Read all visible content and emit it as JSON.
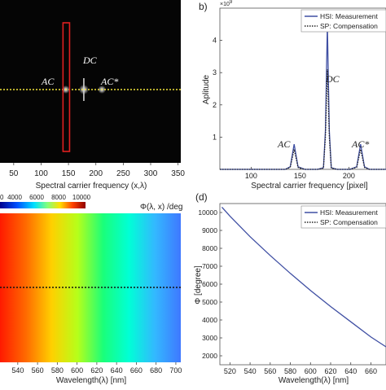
{
  "chart_data": [
    {
      "type": "heatmap",
      "panel": "a",
      "xlabel": "Spectral carrier frequency (x,λ)",
      "xticks": [
        "50",
        "100",
        "150",
        "200",
        "250",
        "300",
        "350"
      ],
      "xlim": [
        25,
        355
      ],
      "peak_labels": [
        "AC",
        "DC",
        "AC*"
      ],
      "peaks_x": [
        145,
        178,
        211
      ],
      "highlight_band_x": [
        140,
        152
      ],
      "line_color": "#f2e33a"
    },
    {
      "type": "line",
      "panel": "b",
      "panel_label": "b)",
      "xlabel": "Spectral carrier frequency [pixel]",
      "ylabel": "Aplitude",
      "y_multiplier": "×10",
      "y_exponent": "9",
      "xticks": [
        100,
        150,
        200
      ],
      "yticks": [
        1,
        2,
        3,
        4
      ],
      "xlim": [
        68,
        238
      ],
      "ylim": [
        0,
        5
      ],
      "legend": [
        "HSI: Measurement",
        "SP: Compensation"
      ],
      "legend_placement": "top-right",
      "peak_labels": [
        "AC",
        "DC",
        "AC*"
      ],
      "series": [
        {
          "name": "HSI: Measurement",
          "x": [
            68,
            100,
            135,
            140,
            144,
            148,
            155,
            168,
            174,
            176,
            178,
            180,
            182,
            188,
            201,
            208,
            212,
            216,
            221,
            238
          ],
          "y": [
            0.0,
            0.0,
            0.0,
            0.08,
            0.78,
            0.08,
            0.0,
            0.0,
            0.05,
            1.2,
            4.5,
            1.2,
            0.05,
            0.0,
            0.0,
            0.08,
            0.78,
            0.08,
            0.0,
            0.0
          ]
        },
        {
          "name": "SP: Compensation",
          "x": [
            68,
            100,
            135,
            140,
            144,
            148,
            155,
            168,
            174,
            176,
            178,
            180,
            182,
            188,
            201,
            208,
            212,
            216,
            221,
            238
          ],
          "y": [
            0.0,
            0.0,
            0.0,
            0.06,
            0.62,
            0.06,
            0.0,
            0.0,
            0.04,
            1.0,
            3.1,
            1.0,
            0.04,
            0.0,
            0.0,
            0.06,
            0.62,
            0.06,
            0.0,
            0.0
          ]
        }
      ],
      "colors": {
        "measurement": "#3f4fa3",
        "compensation": "#222222"
      }
    },
    {
      "type": "heatmap",
      "panel": "c",
      "title": "Φ(λ, x) /deg",
      "colorbar_ticks": [
        "0",
        "4000",
        "6000",
        "8000",
        "10000"
      ],
      "xlabel": "Wavelength(λ) [nm]",
      "xticks": [
        540,
        560,
        580,
        600,
        620,
        640,
        660,
        680,
        700
      ],
      "xlim": [
        522,
        705
      ],
      "spectrum_stops": [
        "#ff1a00",
        "#ff6a00",
        "#ffd000",
        "#b6ff1a",
        "#1aff7a",
        "#00ffd6",
        "#33b8ff",
        "#3f78ff"
      ]
    },
    {
      "type": "line",
      "panel": "d",
      "panel_label": "(d)",
      "xlabel": "Wavelength(λ) [nm]",
      "ylabel": "Φ [degree]",
      "xticks": [
        520,
        540,
        560,
        580,
        600,
        620,
        640,
        660
      ],
      "yticks": [
        2000,
        3000,
        4000,
        5000,
        6000,
        7000,
        8000,
        9000,
        10000
      ],
      "xlim": [
        510,
        675
      ],
      "ylim": [
        1500,
        10500
      ],
      "legend": [
        "HSI: Measurement",
        "SP: Compensation"
      ],
      "legend_placement": "top-right",
      "series": [
        {
          "name": "HSI: Measurement",
          "x": [
            512,
            520,
            540,
            560,
            580,
            600,
            620,
            640,
            660,
            675
          ],
          "y": [
            10300,
            9800,
            8650,
            7600,
            6600,
            5650,
            4750,
            3900,
            3050,
            2500
          ]
        }
      ],
      "colors": {
        "measurement": "#3f4fa3"
      }
    }
  ]
}
